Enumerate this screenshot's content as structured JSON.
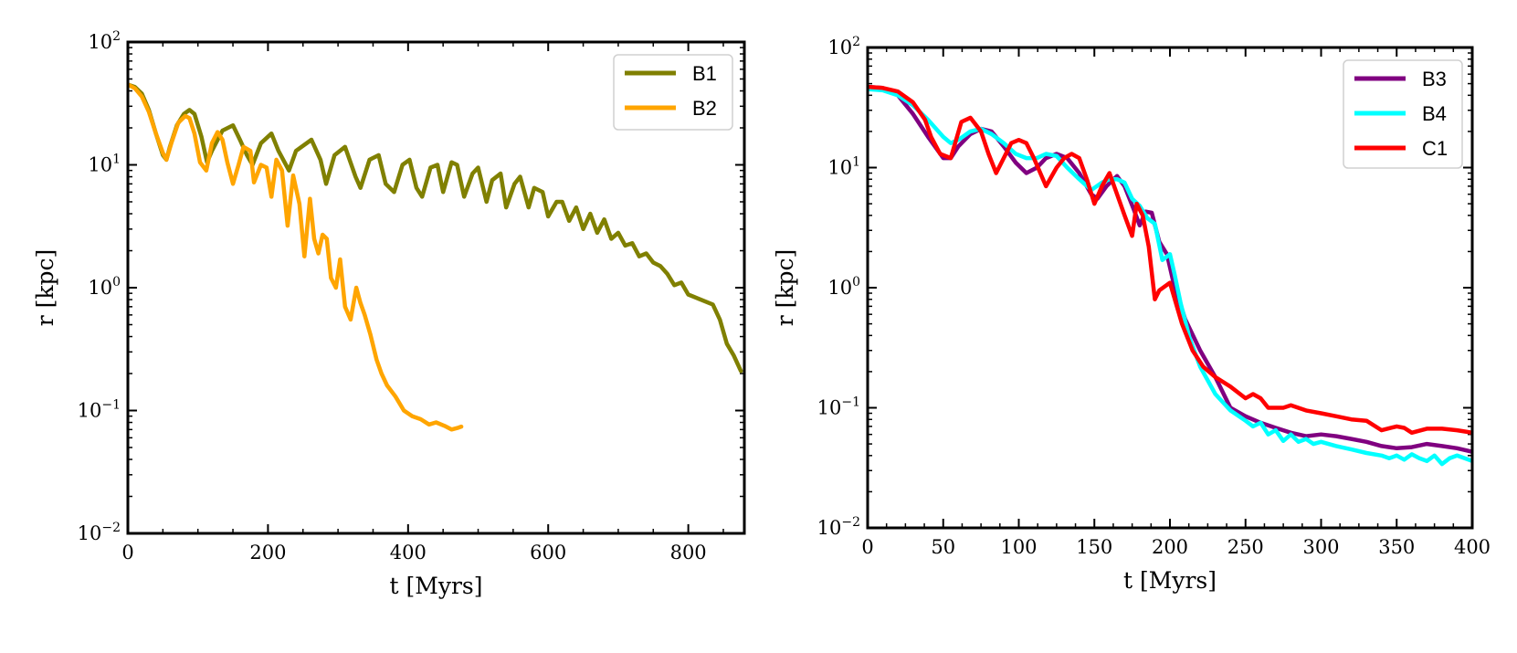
{
  "chart_data": [
    {
      "type": "line",
      "xlabel": "t [Myrs]",
      "ylabel": "r [kpc]",
      "xlim": [
        0,
        880
      ],
      "ylim": [
        0.01,
        100
      ],
      "yscale": "log",
      "xticks": [
        0,
        200,
        400,
        600,
        800
      ],
      "yticks": [
        {
          "base": "10",
          "exp": "2",
          "value": 100
        },
        {
          "base": "10",
          "exp": "1",
          "value": 10
        },
        {
          "base": "10",
          "exp": "0",
          "value": 1
        },
        {
          "base": "10",
          "exp": "−1",
          "value": 0.1
        },
        {
          "base": "10",
          "exp": "−2",
          "value": 0.01
        }
      ],
      "legend_position": "top-right",
      "series": [
        {
          "name": "B1",
          "color": "#808000",
          "x": [
            0,
            10,
            20,
            30,
            40,
            50,
            55,
            60,
            70,
            80,
            88,
            95,
            105,
            113,
            120,
            135,
            150,
            160,
            170,
            178,
            190,
            205,
            215,
            230,
            240,
            262,
            275,
            283,
            295,
            310,
            325,
            332,
            345,
            358,
            368,
            380,
            392,
            402,
            412,
            420,
            432,
            442,
            450,
            462,
            470,
            480,
            492,
            500,
            512,
            520,
            532,
            540,
            552,
            560,
            572,
            580,
            592,
            600,
            612,
            620,
            630,
            640,
            650,
            660,
            670,
            680,
            690,
            700,
            710,
            720,
            730,
            740,
            750,
            760,
            770,
            780,
            790,
            800,
            835,
            845,
            855,
            865,
            875
          ],
          "y": [
            45,
            43,
            38,
            28,
            18,
            12,
            11,
            14,
            21,
            26,
            28,
            26,
            17,
            10.5,
            13,
            19,
            21,
            16,
            12,
            10,
            15,
            18,
            13,
            9,
            13,
            16,
            11,
            7,
            12,
            14,
            8,
            6.5,
            11,
            12,
            7,
            6,
            10,
            11,
            6.5,
            5.5,
            9.5,
            10,
            6,
            10.5,
            10,
            5.5,
            8.5,
            9.5,
            5,
            7.5,
            8.5,
            4.5,
            7,
            8,
            4.5,
            6.5,
            6,
            3.8,
            5,
            5,
            3.5,
            4.5,
            3,
            4,
            2.8,
            3.6,
            2.5,
            2.8,
            2.2,
            2.3,
            1.8,
            1.9,
            1.6,
            1.5,
            1.3,
            1.05,
            1.1,
            0.88,
            0.73,
            0.55,
            0.35,
            0.28,
            0.21
          ]
        },
        {
          "name": "B2",
          "color": "#ffa500",
          "x": [
            0,
            10,
            20,
            30,
            40,
            50,
            55,
            62,
            72,
            82,
            88,
            95,
            103,
            112,
            120,
            128,
            135,
            142,
            150,
            158,
            165,
            175,
            180,
            190,
            198,
            205,
            212,
            220,
            228,
            236,
            245,
            252,
            260,
            266,
            272,
            278,
            284,
            290,
            297,
            303,
            310,
            318,
            326,
            332,
            338,
            346,
            355,
            362,
            370,
            382,
            394,
            406,
            418,
            430,
            440,
            452,
            462,
            470,
            476
          ],
          "y": [
            45,
            42,
            36,
            27,
            18,
            12.5,
            11,
            15,
            22,
            25,
            24,
            18,
            10.5,
            9,
            15,
            18.5,
            16,
            10.5,
            7,
            10,
            14,
            13,
            7.2,
            10,
            9.5,
            5.5,
            11,
            9,
            3.2,
            8.2,
            4.8,
            1.8,
            5.3,
            2.5,
            1.9,
            2.7,
            2.5,
            1.2,
            1.0,
            1.7,
            0.7,
            0.55,
            1.0,
            0.75,
            0.6,
            0.42,
            0.26,
            0.2,
            0.16,
            0.13,
            0.1,
            0.09,
            0.085,
            0.077,
            0.08,
            0.075,
            0.07,
            0.072,
            0.074
          ]
        }
      ]
    },
    {
      "type": "line",
      "xlabel": "t [Myrs]",
      "ylabel": "r [kpc]",
      "xlim": [
        0,
        400
      ],
      "ylim": [
        0.01,
        100
      ],
      "yscale": "log",
      "xticks": [
        0,
        50,
        100,
        150,
        200,
        250,
        300,
        350,
        400
      ],
      "yticks": [
        {
          "base": "10",
          "exp": "2",
          "value": 100
        },
        {
          "base": "10",
          "exp": "1",
          "value": 10
        },
        {
          "base": "10",
          "exp": "0",
          "value": 1
        },
        {
          "base": "10",
          "exp": "−1",
          "value": 0.1
        },
        {
          "base": "10",
          "exp": "−2",
          "value": 0.01
        }
      ],
      "legend_position": "top-right",
      "series": [
        {
          "name": "B3",
          "color": "#800080",
          "x": [
            0,
            10,
            20,
            30,
            40,
            50,
            55,
            60,
            68,
            75,
            82,
            90,
            98,
            105,
            112,
            118,
            125,
            132,
            140,
            148,
            152,
            158,
            165,
            170,
            176,
            180,
            184,
            188,
            193,
            198,
            202,
            210,
            220,
            230,
            240,
            250,
            260,
            270,
            280,
            290,
            300,
            310,
            320,
            330,
            340,
            350,
            360,
            370,
            380,
            390,
            400
          ],
          "y": [
            47,
            46,
            40,
            28,
            18,
            12,
            12,
            15,
            19,
            21,
            20,
            15,
            11,
            9,
            10,
            12,
            13,
            12,
            9,
            6,
            5.5,
            7,
            8.5,
            7,
            4.5,
            3.3,
            4.3,
            4.2,
            2.4,
            1.9,
            1.15,
            0.55,
            0.3,
            0.18,
            0.1,
            0.085,
            0.075,
            0.068,
            0.062,
            0.058,
            0.06,
            0.058,
            0.055,
            0.052,
            0.048,
            0.046,
            0.047,
            0.05,
            0.048,
            0.046,
            0.043
          ]
        },
        {
          "name": "B4",
          "color": "#00ffff",
          "x": [
            0,
            10,
            20,
            30,
            40,
            50,
            55,
            60,
            68,
            75,
            82,
            90,
            98,
            105,
            112,
            118,
            125,
            132,
            140,
            148,
            155,
            160,
            165,
            170,
            175,
            180,
            185,
            190,
            195,
            200,
            203,
            207,
            213,
            220,
            230,
            240,
            250,
            255,
            260,
            265,
            270,
            275,
            280,
            285,
            290,
            295,
            300,
            310,
            320,
            330,
            340,
            345,
            350,
            355,
            360,
            365,
            370,
            375,
            380,
            385,
            390,
            395,
            400
          ],
          "y": [
            45,
            44,
            40,
            33,
            25,
            18,
            16,
            17,
            20,
            21,
            19,
            16,
            13,
            12,
            12,
            13,
            12.5,
            10,
            8,
            6.5,
            7.5,
            8,
            8,
            7.5,
            5.5,
            4.8,
            3.8,
            3.4,
            1.7,
            1.9,
            1.3,
            0.75,
            0.38,
            0.22,
            0.13,
            0.095,
            0.078,
            0.07,
            0.075,
            0.06,
            0.065,
            0.053,
            0.06,
            0.052,
            0.055,
            0.05,
            0.052,
            0.048,
            0.045,
            0.042,
            0.04,
            0.038,
            0.04,
            0.037,
            0.041,
            0.038,
            0.036,
            0.04,
            0.034,
            0.038,
            0.04,
            0.038,
            0.036
          ]
        },
        {
          "name": "C1",
          "color": "#ff0000",
          "x": [
            0,
            10,
            20,
            30,
            38,
            42,
            48,
            55,
            62,
            68,
            75,
            80,
            85,
            90,
            95,
            100,
            105,
            110,
            118,
            125,
            130,
            135,
            140,
            145,
            150,
            155,
            160,
            165,
            170,
            175,
            178,
            182,
            186,
            190,
            193,
            200,
            208,
            215,
            222,
            230,
            240,
            250,
            255,
            260,
            265,
            270,
            275,
            280,
            290,
            300,
            310,
            320,
            330,
            340,
            350,
            355,
            360,
            370,
            380,
            390,
            400
          ],
          "y": [
            47,
            46,
            43,
            35,
            25,
            18,
            13,
            12,
            24,
            26,
            20,
            13,
            9,
            12,
            16,
            17,
            16,
            12,
            7,
            10,
            12,
            13,
            12,
            8,
            5,
            7,
            9,
            6,
            4,
            2.7,
            5,
            4,
            2.2,
            0.8,
            0.95,
            1.1,
            0.5,
            0.3,
            0.22,
            0.18,
            0.15,
            0.12,
            0.13,
            0.12,
            0.1,
            0.1,
            0.1,
            0.105,
            0.095,
            0.09,
            0.085,
            0.08,
            0.078,
            0.065,
            0.07,
            0.068,
            0.062,
            0.067,
            0.067,
            0.065,
            0.062
          ]
        }
      ]
    }
  ]
}
